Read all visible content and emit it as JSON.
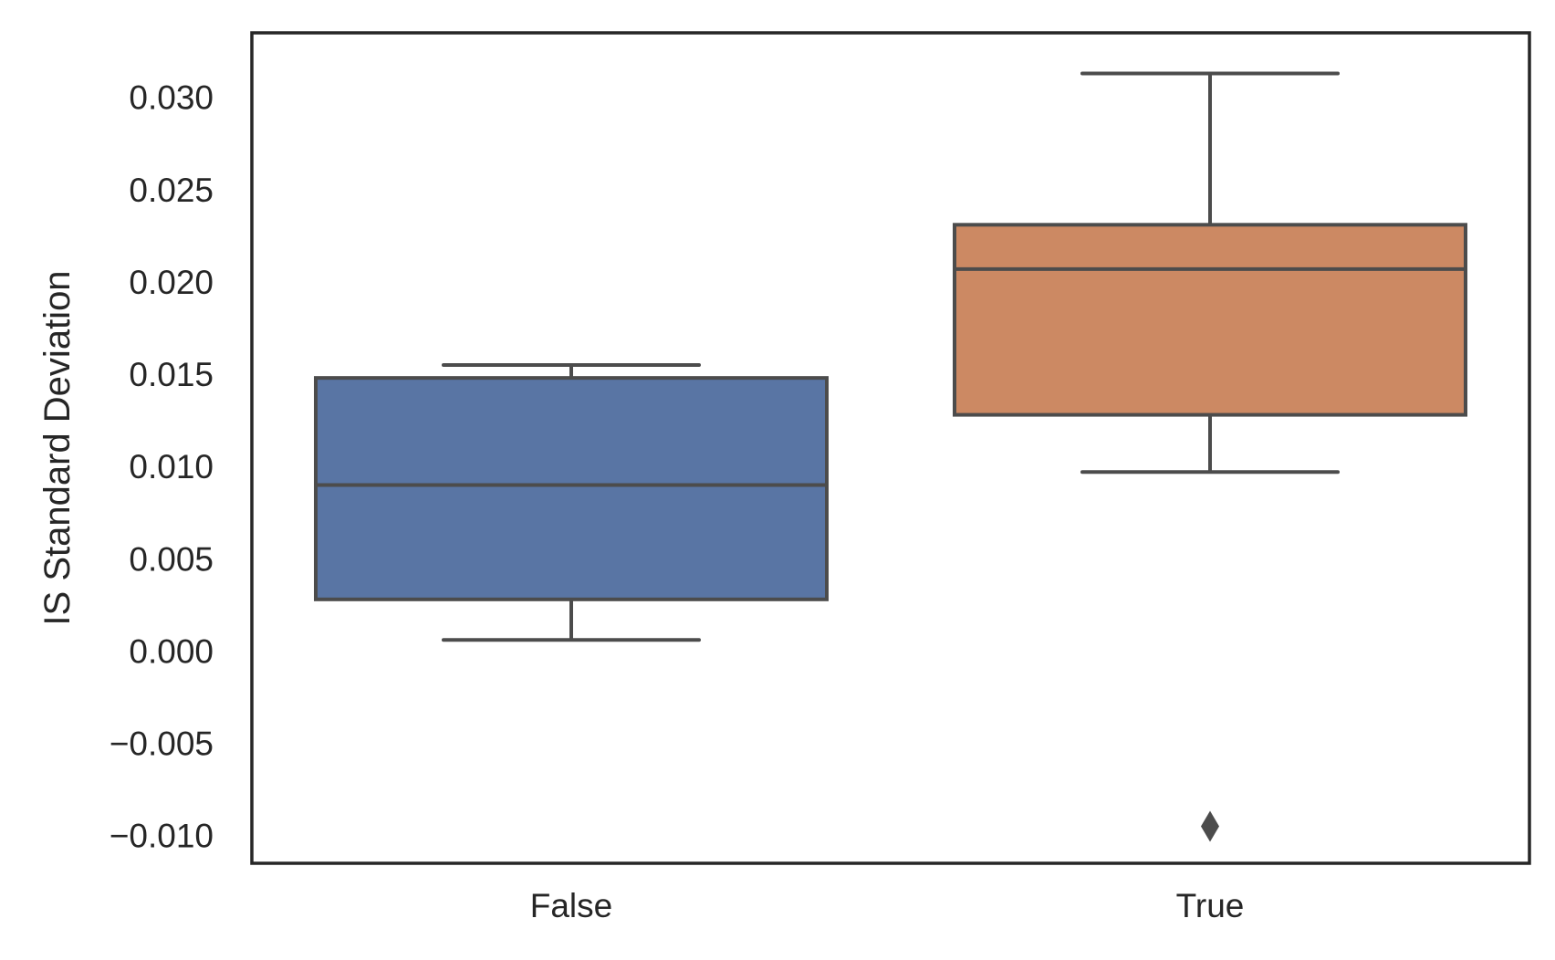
{
  "chart_data": {
    "type": "box",
    "ylabel": "IS Standard Deviation",
    "xlabel": "",
    "title": "",
    "ylim": [
      -0.0115,
      0.0335
    ],
    "yticks": [
      -0.01,
      -0.005,
      0.0,
      0.005,
      0.01,
      0.015,
      0.02,
      0.025,
      0.03
    ],
    "ytick_labels": [
      "−0.010",
      "−0.005",
      "0.000",
      "0.005",
      "0.010",
      "0.015",
      "0.020",
      "0.025",
      "0.030"
    ],
    "grid": false,
    "categories": [
      "False",
      "True"
    ],
    "boxes": [
      {
        "category": "False",
        "color": "#5975a4",
        "whisker_low": 0.0006,
        "q1": 0.0028,
        "median": 0.009,
        "q3": 0.0148,
        "whisker_high": 0.0155,
        "outliers": []
      },
      {
        "category": "True",
        "color": "#cc8963",
        "whisker_low": 0.0097,
        "q1": 0.0128,
        "median": 0.0207,
        "q3": 0.0231,
        "whisker_high": 0.0313,
        "outliers": [
          -0.0095
        ]
      }
    ],
    "line_color": "#4c4c4c",
    "frame_color": "#262626"
  }
}
